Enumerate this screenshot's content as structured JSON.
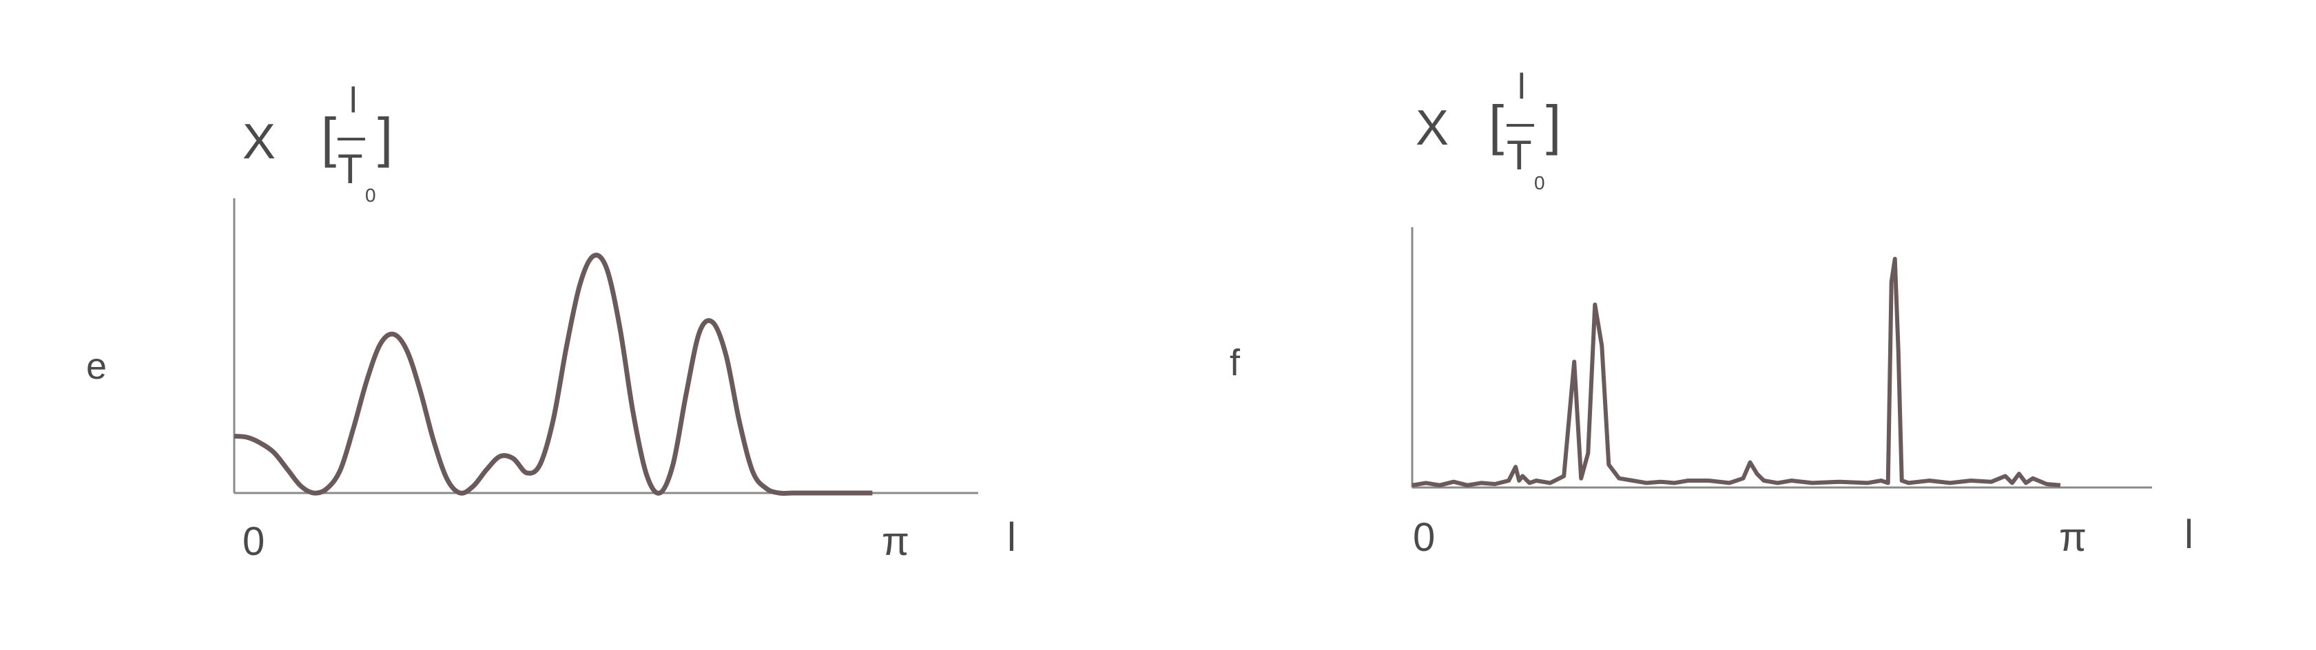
{
  "chart_data": [
    {
      "type": "line",
      "panel_label": "e",
      "ylabel": {
        "symbol": "X",
        "open": "[",
        "numerator": "l",
        "denominator": "T",
        "subscript": "0",
        "close": "]"
      },
      "xlabel": "l",
      "x_ticks": [
        "0",
        "π"
      ],
      "xlim": [
        0,
        1
      ],
      "ylim": [
        0,
        1
      ],
      "grid": false,
      "color": "#6b5a5c",
      "series": [
        {
          "x": [
            0.0,
            0.02,
            0.04,
            0.06,
            0.08,
            0.1,
            0.12,
            0.14,
            0.16,
            0.18,
            0.2,
            0.22,
            0.24,
            0.26,
            0.28,
            0.3,
            0.32,
            0.34,
            0.36,
            0.38,
            0.4,
            0.42,
            0.44,
            0.46,
            0.48,
            0.5,
            0.52,
            0.54,
            0.56,
            0.58,
            0.6,
            0.62,
            0.64,
            0.66,
            0.68,
            0.7,
            0.72,
            0.74,
            0.76,
            0.78,
            0.8,
            0.82,
            0.84,
            0.86,
            0.88,
            0.9,
            0.92,
            0.94,
            0.96
          ],
          "y": [
            0.24,
            0.235,
            0.21,
            0.17,
            0.1,
            0.03,
            0.0,
            0.02,
            0.1,
            0.28,
            0.48,
            0.63,
            0.67,
            0.6,
            0.43,
            0.22,
            0.06,
            0.0,
            0.03,
            0.1,
            0.155,
            0.145,
            0.085,
            0.12,
            0.31,
            0.62,
            0.88,
            1.0,
            0.95,
            0.7,
            0.34,
            0.08,
            0.0,
            0.12,
            0.42,
            0.68,
            0.72,
            0.58,
            0.3,
            0.09,
            0.02,
            0.0,
            0.0,
            0.0,
            0.0,
            0.0,
            0.0,
            0.0,
            0.0
          ]
        }
      ]
    },
    {
      "type": "line",
      "panel_label": "f",
      "ylabel": {
        "symbol": "X",
        "open": "[",
        "numerator": "l",
        "denominator": "T",
        "subscript": "0",
        "close": "]"
      },
      "xlabel": "l",
      "x_ticks": [
        "0",
        "π"
      ],
      "xlim": [
        0,
        1
      ],
      "ylim": [
        0,
        1
      ],
      "grid": false,
      "color": "#6b5a5c",
      "series": [
        {
          "x": [
            0.0,
            0.02,
            0.04,
            0.06,
            0.08,
            0.1,
            0.12,
            0.14,
            0.15,
            0.155,
            0.16,
            0.17,
            0.18,
            0.2,
            0.22,
            0.235,
            0.245,
            0.255,
            0.265,
            0.275,
            0.285,
            0.3,
            0.32,
            0.34,
            0.36,
            0.38,
            0.4,
            0.43,
            0.46,
            0.48,
            0.49,
            0.5,
            0.51,
            0.53,
            0.55,
            0.58,
            0.62,
            0.66,
            0.68,
            0.69,
            0.695,
            0.7,
            0.705,
            0.71,
            0.72,
            0.75,
            0.78,
            0.81,
            0.84,
            0.86,
            0.87,
            0.88,
            0.89,
            0.9,
            0.92,
            0.94
          ],
          "y": [
            0.01,
            0.02,
            0.01,
            0.025,
            0.01,
            0.02,
            0.015,
            0.03,
            0.09,
            0.03,
            0.05,
            0.02,
            0.03,
            0.02,
            0.05,
            0.55,
            0.04,
            0.15,
            0.8,
            0.62,
            0.1,
            0.04,
            0.03,
            0.02,
            0.025,
            0.02,
            0.03,
            0.03,
            0.02,
            0.04,
            0.11,
            0.06,
            0.03,
            0.02,
            0.03,
            0.02,
            0.025,
            0.02,
            0.03,
            0.02,
            0.9,
            1.0,
            0.6,
            0.03,
            0.02,
            0.03,
            0.02,
            0.03,
            0.025,
            0.05,
            0.02,
            0.06,
            0.02,
            0.04,
            0.015,
            0.01
          ]
        }
      ]
    }
  ]
}
